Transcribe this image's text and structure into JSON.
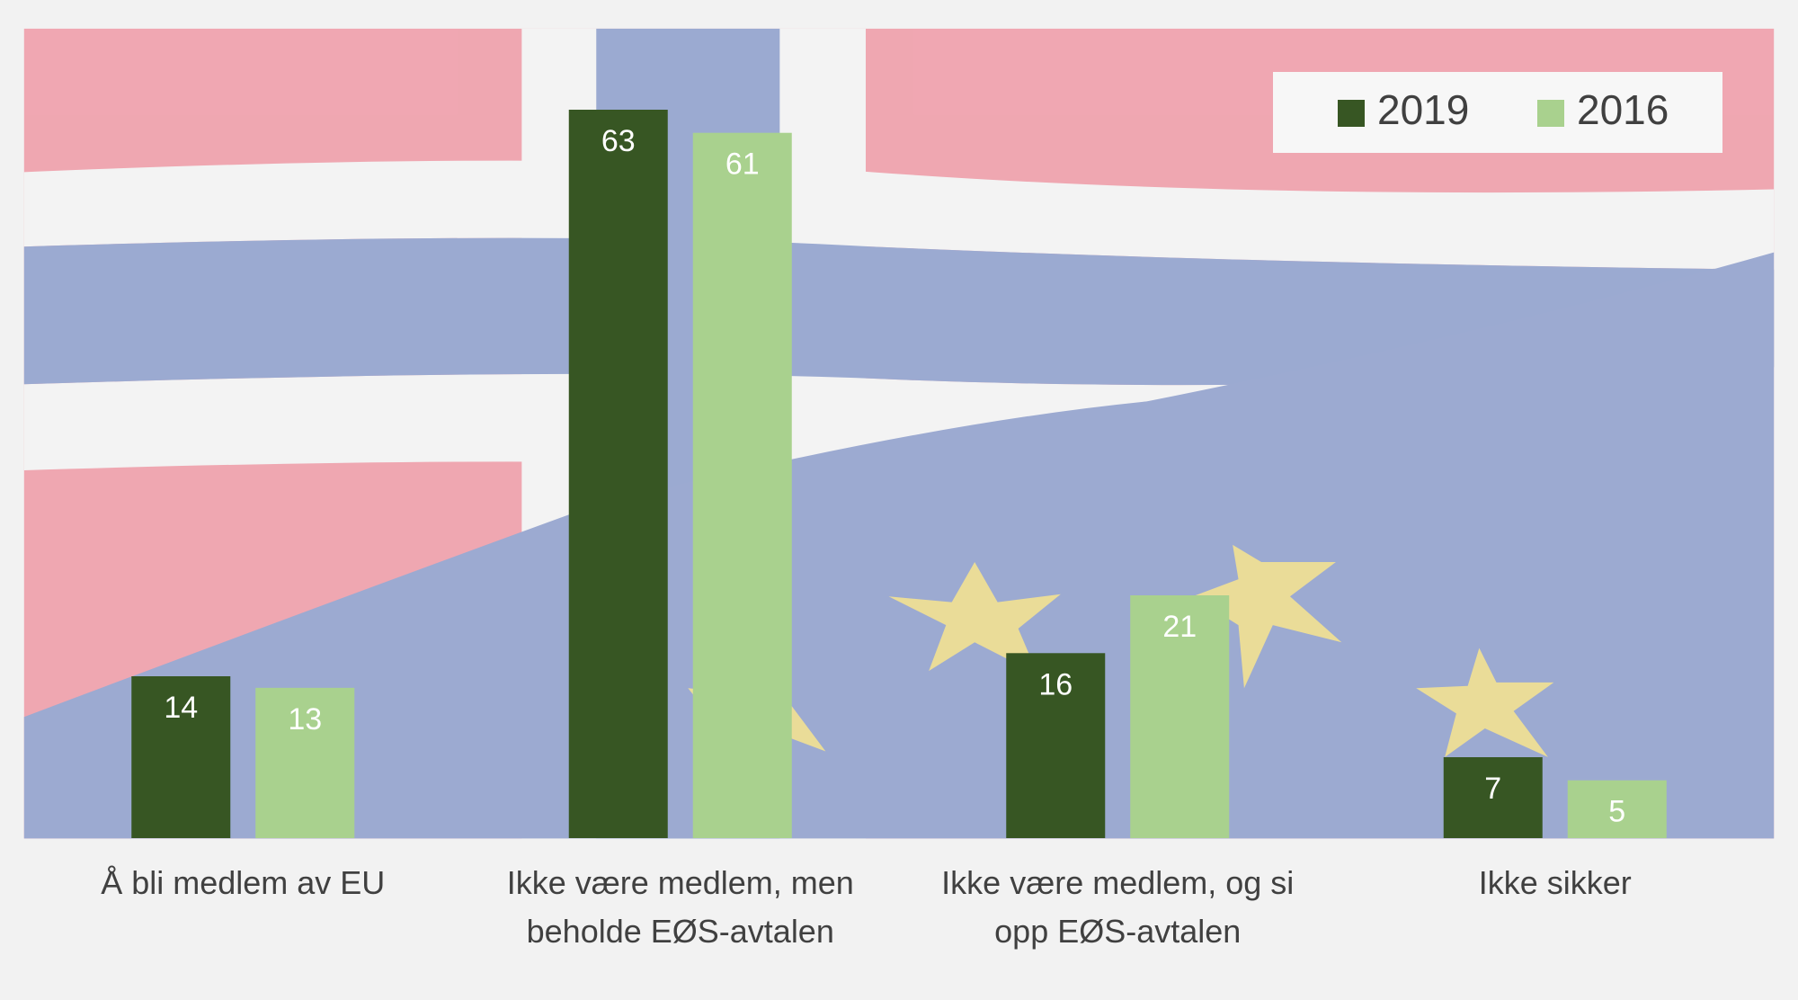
{
  "chart_data": {
    "type": "bar",
    "categories": [
      "Å bli medlem av EU",
      "Ikke være medlem, men beholde EØS-avtalen",
      "Ikke være medlem, og si opp EØS-avtalen",
      "Ikke sikker"
    ],
    "series": [
      {
        "name": "2019",
        "color": "#375623",
        "values": [
          14,
          63,
          16,
          7
        ]
      },
      {
        "name": "2016",
        "color": "#a9d18e",
        "values": [
          13,
          61,
          21,
          5
        ]
      }
    ],
    "ylim": [
      0,
      70
    ],
    "legend": "upper right"
  }
}
